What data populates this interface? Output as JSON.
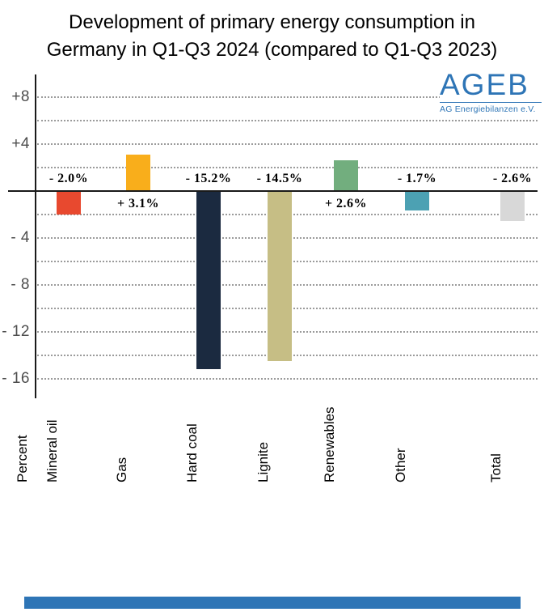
{
  "page": {
    "title_line1": "Development of primary energy consumption in",
    "title_line2": "Germany in Q1-Q3 2024 (compared to Q1-Q3 2023)"
  },
  "logo": {
    "name": "AGEB",
    "subtitle": "AG Energiebilanzen e.V.",
    "color": "#2e75b6"
  },
  "chart_data": {
    "type": "bar",
    "title": "Development of primary energy consumption in Germany in Q1-Q3 2024 (compared to Q1-Q3 2023)",
    "y_axis_title": "Percent",
    "categories": [
      "Mineral oil",
      "Gas",
      "Hard coal",
      "Lignite",
      "Renewables",
      "Other",
      "Total"
    ],
    "values": [
      -2.0,
      3.1,
      -15.2,
      -14.5,
      2.6,
      -1.7,
      -2.6
    ],
    "value_labels": [
      "- 2.0%",
      "+ 3.1%",
      "- 15.2%",
      "- 14.5%",
      "+ 2.6%",
      "- 1.7%",
      "- 2.6%"
    ],
    "bar_colors": [
      "#e8492f",
      "#f9ae1b",
      "#1b2a40",
      "#c6be85",
      "#72ae7e",
      "#4ca1b3",
      "#d8d8d8"
    ],
    "ylim": [
      -17.5,
      9.5
    ],
    "grid": "dotted horizontal, every 2 units",
    "legend": "none",
    "gridline_values": [
      8,
      6,
      4,
      2,
      -2,
      -4,
      -6,
      -8,
      -10,
      -12,
      -14,
      -16
    ],
    "y_ticks": [
      {
        "value": 8,
        "label": "+8"
      },
      {
        "value": 4,
        "label": "+4"
      },
      {
        "value": -4,
        "label": "- 4"
      },
      {
        "value": -8,
        "label": "- 8"
      },
      {
        "value": -12,
        "label": "- 12"
      },
      {
        "value": -16,
        "label": "- 16"
      }
    ]
  },
  "footer": {
    "bar_color": "#2e75b6"
  }
}
